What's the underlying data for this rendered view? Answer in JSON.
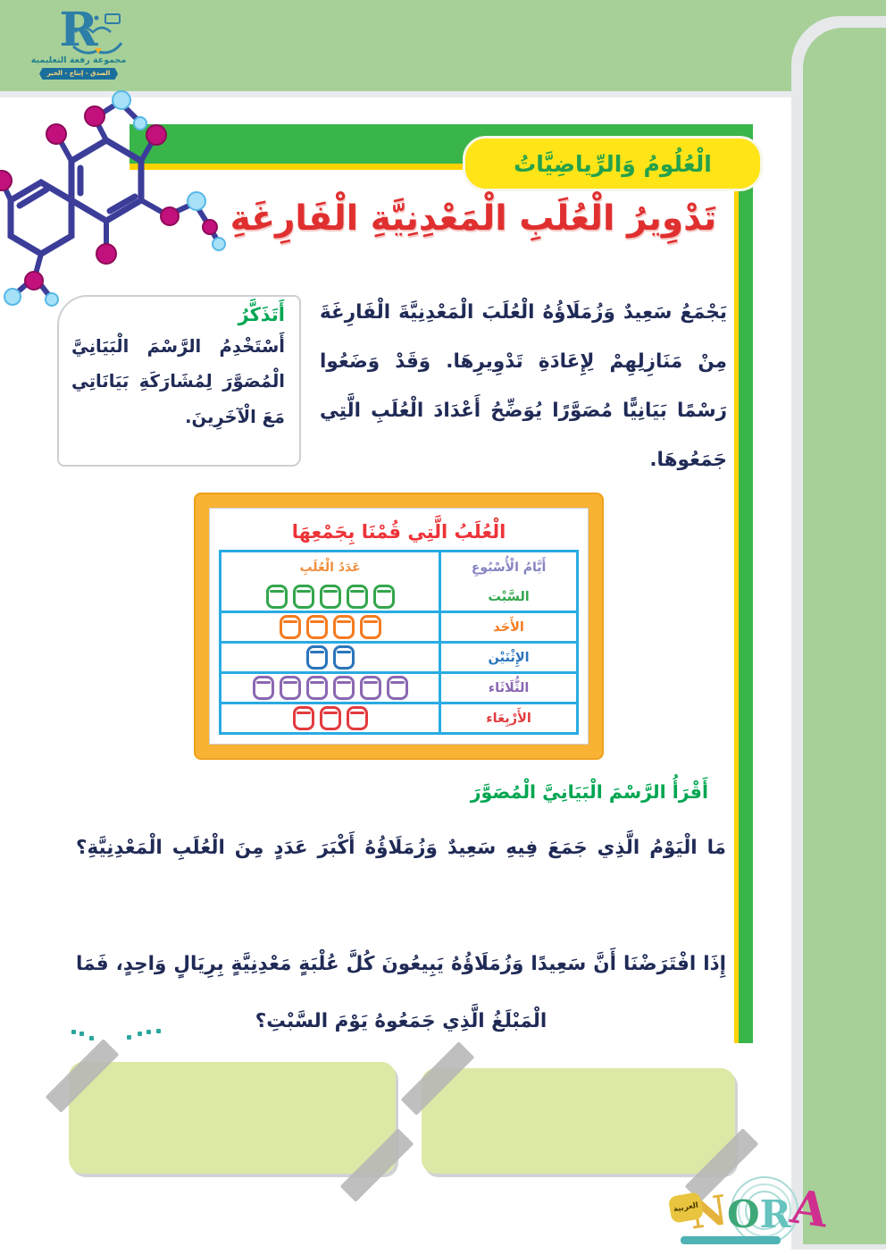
{
  "header": {
    "logo": {
      "letter": "R",
      "org_name": "مجموعة رفعة التعليمية",
      "motto": "الصدق - إنتاج - الخير"
    },
    "subject_badge": "الْعُلُومُ وَالرِّياضِيَّاتُ"
  },
  "lesson": {
    "title": "تَدْوِيرُ الْعُلَبِ الْمَعْدِنِيَّةِ الْفَارِغَةِ",
    "intro": "يَجْمَعُ سَعِيدٌ وَزُمَلَاؤُهُ الْعُلَبَ الْمَعْدِنِيَّةَ الْفَارِغَةَ مِنْ مَنَازِلِهِمْ لِإِعَادَةِ تَدْوِيرِهَا. وَقَدْ وَضَعُوا رَسْمًا بَيَانِيًّا مُصَوَّرًا يُوَضِّحُ أَعْدَادَ الْعُلَبِ الَّتِي جَمَعُوهَا."
  },
  "remember_box": {
    "heading": "أَتَذَكَّرُ",
    "body": "أَسْتَخْدِمُ الرَّسْمَ الْبَيَانِيَّ الْمُصَوَّرَ لِمُشَارَكَةِ بَيَانَاتِي مَعَ الْآخَرِينَ."
  },
  "chart_data": {
    "type": "table",
    "subtype": "pictograph",
    "title": "الْعُلَبُ الَّتِي قُمْنَا بِجَمْعِهَا",
    "columns": [
      "أَيَّامُ الْأُسْبُوعِ",
      "عَدَدُ الْعُلَبِ"
    ],
    "unit": "can-icon = 1 can",
    "header_colors": {
      "days": "#8583c1",
      "cans": "#ee8f3e"
    },
    "rows": [
      {
        "day": "السَّبْت",
        "cans": 5,
        "color": "#33a64c"
      },
      {
        "day": "الأَحَد",
        "cans": 4,
        "color": "#f47b20"
      },
      {
        "day": "الإِثْنَيْن",
        "cans": 2,
        "color": "#2a75bb"
      },
      {
        "day": "الثُّلَاثَاء",
        "cans": 6,
        "color": "#8a68b2"
      },
      {
        "day": "الأَرْبِعَاء",
        "cans": 3,
        "color": "#e23b3e"
      }
    ]
  },
  "reading_section": {
    "heading": "أَقْرَأُ الرَّسْمَ الْبَيَانِيَّ الْمُصَوَّرَ",
    "question1": "مَا الْيَوْمُ الَّذِي جَمَعَ فِيهِ سَعِيدٌ وَزُمَلَاؤُهُ أَكْبَرَ عَدَدٍ مِنَ الْعُلَبِ الْمَعْدِنِيَّةِ؟",
    "question2_line1": "إِذَا افْتَرَضْنَا أَنَّ سَعِيدًا وَزُمَلَاؤُهُ يَبِيعُونَ كُلَّ عُلْبَةٍ مَعْدِنِيَّةٍ بِرِيَالٍ وَاحِدٍ، فَمَا",
    "question2_line2": "الْمَبْلَغُ الَّذِي جَمَعُوهُ يَوْمَ السَّبْتِ؟"
  },
  "footer": {
    "publisher_letters": [
      {
        "ch": "N",
        "color": "#e4b33c"
      },
      {
        "ch": "O",
        "color": "#3fa878"
      },
      {
        "ch": "R",
        "color": "#66c3bd"
      },
      {
        "ch": "A",
        "color": "#cf2f8e"
      }
    ],
    "badge": "العربية"
  },
  "palette": {
    "band_green": "#a7d099",
    "banner_green": "#3ab54a",
    "banner_yellow": "#ffd200",
    "title_red": "#e02f2f",
    "body_navy": "#202a56",
    "section_green": "#00a651",
    "table_frame_orange": "#f9b233",
    "table_border_cyan": "#29abe2",
    "answer_box_green": "#dce9a6",
    "tape_gray": "#b6b6b6"
  }
}
